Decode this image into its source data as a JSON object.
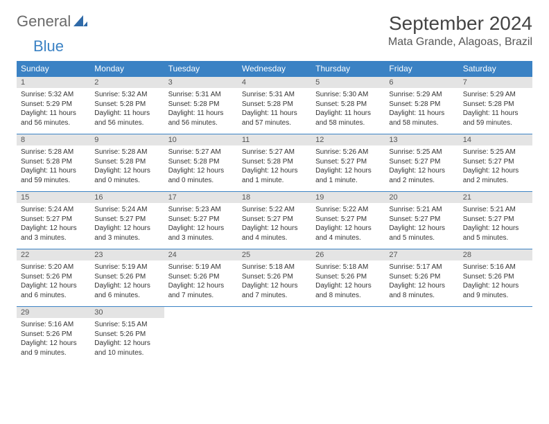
{
  "brand": {
    "word1": "General",
    "word2": "Blue"
  },
  "title": "September 2024",
  "location": "Mata Grande, Alagoas, Brazil",
  "colors": {
    "header_bg": "#3b82c4",
    "daynum_bg": "#e4e4e4",
    "border": "#3b82c4",
    "text": "#333333",
    "title_text": "#444444"
  },
  "daysOfWeek": [
    "Sunday",
    "Monday",
    "Tuesday",
    "Wednesday",
    "Thursday",
    "Friday",
    "Saturday"
  ],
  "weeks": [
    [
      {
        "n": "1",
        "sr": "5:32 AM",
        "ss": "5:29 PM",
        "dl": "11 hours and 56 minutes."
      },
      {
        "n": "2",
        "sr": "5:32 AM",
        "ss": "5:28 PM",
        "dl": "11 hours and 56 minutes."
      },
      {
        "n": "3",
        "sr": "5:31 AM",
        "ss": "5:28 PM",
        "dl": "11 hours and 56 minutes."
      },
      {
        "n": "4",
        "sr": "5:31 AM",
        "ss": "5:28 PM",
        "dl": "11 hours and 57 minutes."
      },
      {
        "n": "5",
        "sr": "5:30 AM",
        "ss": "5:28 PM",
        "dl": "11 hours and 58 minutes."
      },
      {
        "n": "6",
        "sr": "5:29 AM",
        "ss": "5:28 PM",
        "dl": "11 hours and 58 minutes."
      },
      {
        "n": "7",
        "sr": "5:29 AM",
        "ss": "5:28 PM",
        "dl": "11 hours and 59 minutes."
      }
    ],
    [
      {
        "n": "8",
        "sr": "5:28 AM",
        "ss": "5:28 PM",
        "dl": "11 hours and 59 minutes."
      },
      {
        "n": "9",
        "sr": "5:28 AM",
        "ss": "5:28 PM",
        "dl": "12 hours and 0 minutes."
      },
      {
        "n": "10",
        "sr": "5:27 AM",
        "ss": "5:28 PM",
        "dl": "12 hours and 0 minutes."
      },
      {
        "n": "11",
        "sr": "5:27 AM",
        "ss": "5:28 PM",
        "dl": "12 hours and 1 minute."
      },
      {
        "n": "12",
        "sr": "5:26 AM",
        "ss": "5:27 PM",
        "dl": "12 hours and 1 minute."
      },
      {
        "n": "13",
        "sr": "5:25 AM",
        "ss": "5:27 PM",
        "dl": "12 hours and 2 minutes."
      },
      {
        "n": "14",
        "sr": "5:25 AM",
        "ss": "5:27 PM",
        "dl": "12 hours and 2 minutes."
      }
    ],
    [
      {
        "n": "15",
        "sr": "5:24 AM",
        "ss": "5:27 PM",
        "dl": "12 hours and 3 minutes."
      },
      {
        "n": "16",
        "sr": "5:24 AM",
        "ss": "5:27 PM",
        "dl": "12 hours and 3 minutes."
      },
      {
        "n": "17",
        "sr": "5:23 AM",
        "ss": "5:27 PM",
        "dl": "12 hours and 3 minutes."
      },
      {
        "n": "18",
        "sr": "5:22 AM",
        "ss": "5:27 PM",
        "dl": "12 hours and 4 minutes."
      },
      {
        "n": "19",
        "sr": "5:22 AM",
        "ss": "5:27 PM",
        "dl": "12 hours and 4 minutes."
      },
      {
        "n": "20",
        "sr": "5:21 AM",
        "ss": "5:27 PM",
        "dl": "12 hours and 5 minutes."
      },
      {
        "n": "21",
        "sr": "5:21 AM",
        "ss": "5:27 PM",
        "dl": "12 hours and 5 minutes."
      }
    ],
    [
      {
        "n": "22",
        "sr": "5:20 AM",
        "ss": "5:26 PM",
        "dl": "12 hours and 6 minutes."
      },
      {
        "n": "23",
        "sr": "5:19 AM",
        "ss": "5:26 PM",
        "dl": "12 hours and 6 minutes."
      },
      {
        "n": "24",
        "sr": "5:19 AM",
        "ss": "5:26 PM",
        "dl": "12 hours and 7 minutes."
      },
      {
        "n": "25",
        "sr": "5:18 AM",
        "ss": "5:26 PM",
        "dl": "12 hours and 7 minutes."
      },
      {
        "n": "26",
        "sr": "5:18 AM",
        "ss": "5:26 PM",
        "dl": "12 hours and 8 minutes."
      },
      {
        "n": "27",
        "sr": "5:17 AM",
        "ss": "5:26 PM",
        "dl": "12 hours and 8 minutes."
      },
      {
        "n": "28",
        "sr": "5:16 AM",
        "ss": "5:26 PM",
        "dl": "12 hours and 9 minutes."
      }
    ],
    [
      {
        "n": "29",
        "sr": "5:16 AM",
        "ss": "5:26 PM",
        "dl": "12 hours and 9 minutes."
      },
      {
        "n": "30",
        "sr": "5:15 AM",
        "ss": "5:26 PM",
        "dl": "12 hours and 10 minutes."
      },
      null,
      null,
      null,
      null,
      null
    ]
  ],
  "labels": {
    "sunrise": "Sunrise: ",
    "sunset": "Sunset: ",
    "daylight": "Daylight: "
  }
}
